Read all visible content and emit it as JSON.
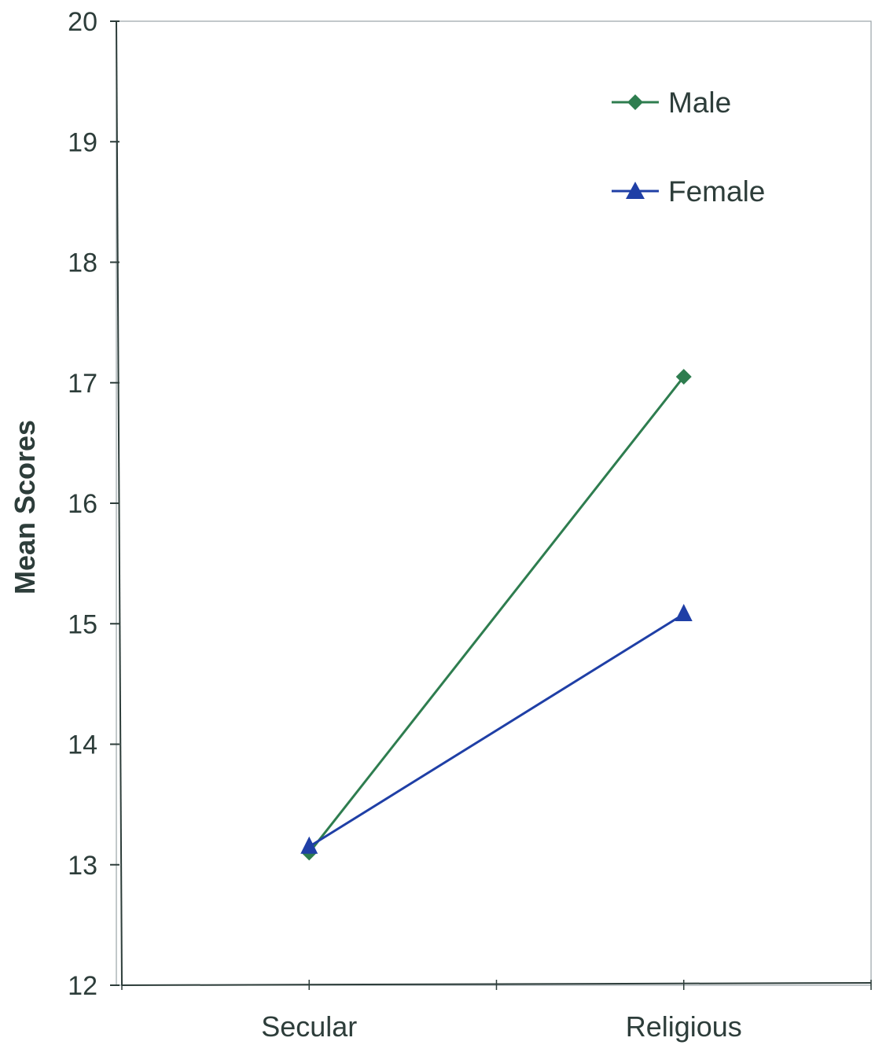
{
  "chart_data": {
    "type": "line",
    "categories": [
      "Secular",
      "Religious"
    ],
    "series": [
      {
        "name": "Male",
        "values": [
          13.1,
          17.05
        ],
        "color": "#2e7d4f",
        "marker": "diamond"
      },
      {
        "name": "Female",
        "values": [
          13.15,
          15.08
        ],
        "color": "#1f3fa6",
        "marker": "triangle"
      }
    ],
    "title": "",
    "xlabel": "",
    "ylabel": "Mean Scores",
    "ylim": [
      12,
      20
    ],
    "yticks": [
      "12",
      "13",
      "14",
      "15",
      "16",
      "17",
      "18",
      "19",
      "20"
    ],
    "grid": false,
    "legend_position": "top-right",
    "axis_color": "#2d3d3a"
  }
}
